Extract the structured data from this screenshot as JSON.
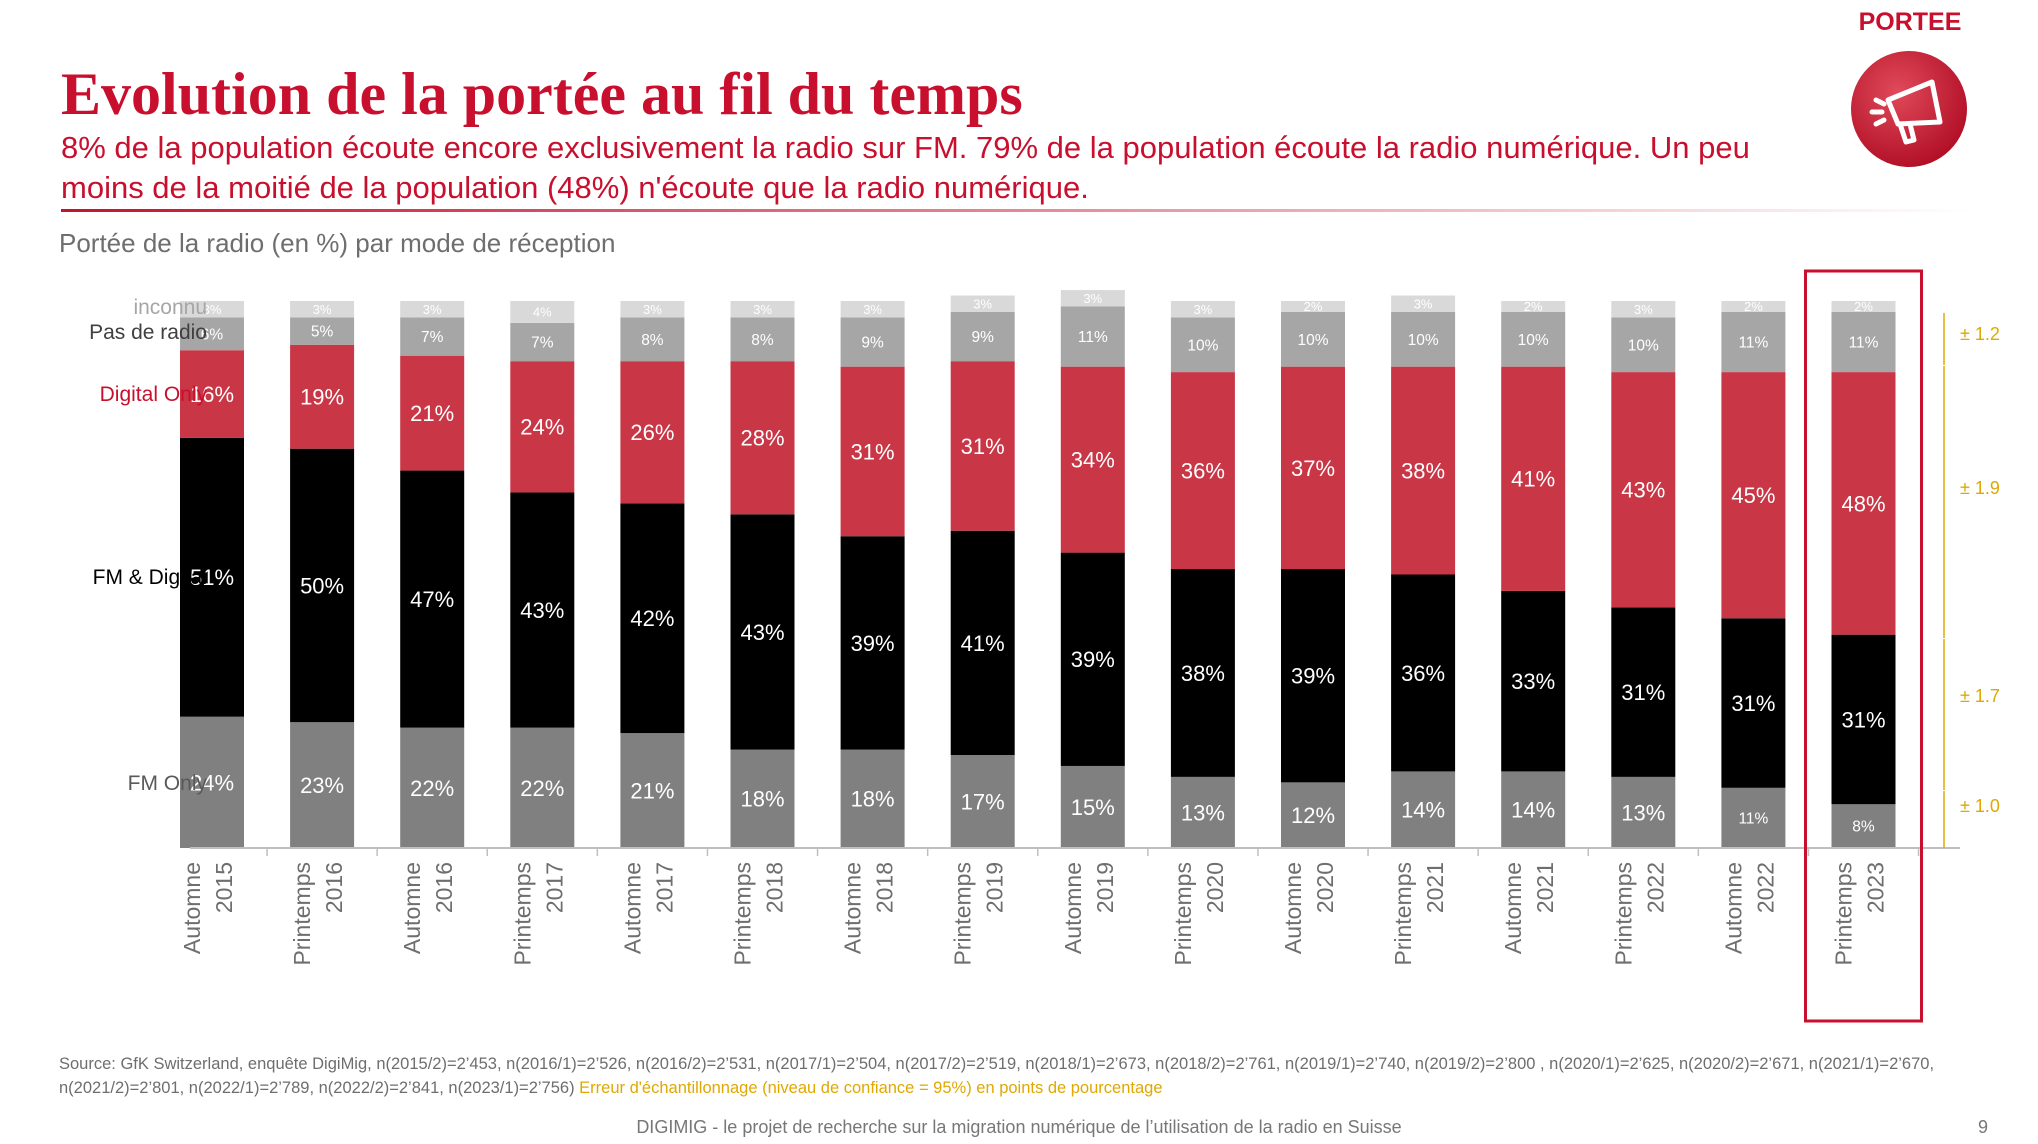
{
  "title": "Evolution de la portée au fil du temps",
  "subtitle": "8% de la population écoute encore exclusivement la radio sur FM. 79% de la population écoute la radio numérique. Un peu moins de la moitié de la population (48%) n'écoute que la radio numérique.",
  "badge": {
    "label": "PORTEE",
    "icon": "megaphone-icon"
  },
  "chart_subtitle": "Portée de la radio (en %) par mode de réception",
  "chart_data": {
    "type": "bar",
    "stacked": true,
    "categories": [
      [
        "Automne",
        "2015"
      ],
      [
        "Printemps",
        "2016"
      ],
      [
        "Automne",
        "2016"
      ],
      [
        "Printemps",
        "2017"
      ],
      [
        "Automne",
        "2017"
      ],
      [
        "Printemps",
        "2018"
      ],
      [
        "Automne",
        "2018"
      ],
      [
        "Printemps",
        "2019"
      ],
      [
        "Automne",
        "2019"
      ],
      [
        "Printemps",
        "2020"
      ],
      [
        "Automne",
        "2020"
      ],
      [
        "Printemps",
        "2021"
      ],
      [
        "Automne",
        "2021"
      ],
      [
        "Printemps",
        "2022"
      ],
      [
        "Automne",
        "2022"
      ],
      [
        "Printemps",
        "2023"
      ]
    ],
    "series": [
      {
        "name": "FM Only",
        "color": "#808080",
        "label_color": "#ffffff",
        "values": [
          24,
          23,
          22,
          22,
          21,
          18,
          18,
          17,
          15,
          13,
          12,
          14,
          14,
          13,
          11,
          8
        ]
      },
      {
        "name": "FM & Digital",
        "color": "#000000",
        "label_color": "#ffffff",
        "values": [
          51,
          50,
          47,
          43,
          42,
          43,
          39,
          41,
          39,
          38,
          39,
          36,
          33,
          31,
          31,
          31
        ]
      },
      {
        "name": "Digital Only",
        "color": "#c93646",
        "label_color": "#ffffff",
        "values": [
          16,
          19,
          21,
          24,
          26,
          28,
          31,
          31,
          34,
          36,
          37,
          38,
          41,
          43,
          45,
          48
        ]
      },
      {
        "name": "Pas de radio",
        "color": "#a6a6a6",
        "label_color": "#ffffff",
        "values": [
          6,
          5,
          7,
          7,
          8,
          8,
          9,
          9,
          11,
          10,
          10,
          10,
          10,
          10,
          11,
          11
        ]
      },
      {
        "name": "inconnu",
        "color": "#d9d9d9",
        "label_color": "#ffffff",
        "values": [
          3,
          3,
          3,
          4,
          3,
          3,
          3,
          3,
          3,
          3,
          2,
          3,
          2,
          3,
          2,
          2
        ]
      }
    ],
    "value_suffix": "%",
    "highlight_index": 15,
    "sampling_errors": [
      {
        "series": "FM Only",
        "value": "± 1.0"
      },
      {
        "series": "FM & Digital",
        "value": "± 1.7"
      },
      {
        "series": "Digital Only",
        "value": "± 1.9"
      },
      {
        "series": "Pas de radio",
        "value": "± 1.2"
      }
    ],
    "legend_colors": {
      "inconnu": "#a6a6a6",
      "Pas de radio": "#404040",
      "Digital Only": "#c8102e",
      "FM & Digital": "#000000",
      "FM Only": "#595959"
    },
    "error_color": "#e0a800",
    "highlight_color": "#c8102e"
  },
  "source": "Source: GfK Switzerland, enquête DigiMig, n(2015/2)=2’453, n(2016/1)=2’526, n(2016/2)=2’531, n(2017/1)=2’504, n(2017/2)=2’519, n(2018/1)=2’673, n(2018/2)=2’761, n(2019/1)=2’740, n(2019/2)=2’800 , n(2020/1)=2’625, n(2020/2)=2’671, n(2021/1)=2’670, n(2021/2)=2’801, n(2022/1)=2’789, n(2022/2)=2’841, n(2023/1)=2’756)",
  "sampling_note": "Erreur d'échantillonnage (niveau de confiance = 95%) en points de pourcentage",
  "footer": "DIGIMIG - le projet de recherche sur la migration numérique de l’utilisation de la radio en Suisse",
  "page_number": "9"
}
